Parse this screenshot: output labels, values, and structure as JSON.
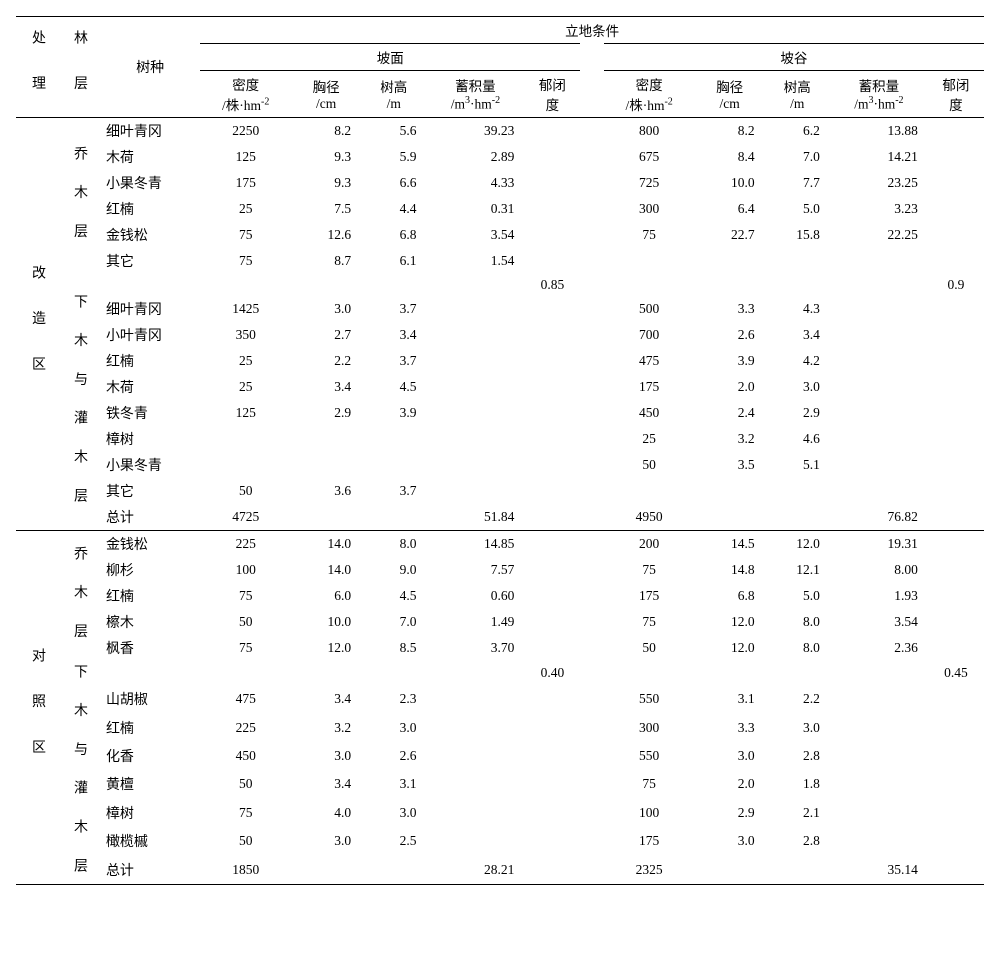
{
  "headers": {
    "treatment": "处\n理",
    "layer": "林\n层",
    "species": "树种",
    "site_cond": "立地条件",
    "slope": "坡面",
    "valley": "坡谷",
    "density": "密度",
    "density_unit_a": "/株·hm",
    "density_unit_exp": "-2",
    "dbh": "胸径",
    "dbh_unit": "/cm",
    "height": "树高",
    "height_unit": "/m",
    "volume": "蓄积量",
    "volume_unit_a": "/m",
    "volume_unit_exp1": "3",
    "volume_unit_b": "·hm",
    "volume_unit_exp2": "-2",
    "canopy_a": "郁闭",
    "canopy_b": "度"
  },
  "treatments": {
    "gz": "改\n造\n区",
    "dz": "对\n照\n区"
  },
  "layers": {
    "upper": "乔\n木\n层",
    "lower": "下\n木\n与\n灌\n木\n层"
  },
  "gz_upper": [
    {
      "sp": "细叶青冈",
      "d1": "2250",
      "dbh1": "8.2",
      "h1": "5.6",
      "v1": "39.23",
      "d2": "800",
      "dbh2": "8.2",
      "h2": "6.2",
      "v2": "13.88"
    },
    {
      "sp": "木荷",
      "d1": "125",
      "dbh1": "9.3",
      "h1": "5.9",
      "v1": "2.89",
      "d2": "675",
      "dbh2": "8.4",
      "h2": "7.0",
      "v2": "14.21"
    },
    {
      "sp": "小果冬青",
      "d1": "175",
      "dbh1": "9.3",
      "h1": "6.6",
      "v1": "4.33",
      "d2": "725",
      "dbh2": "10.0",
      "h2": "7.7",
      "v2": "23.25"
    },
    {
      "sp": "红楠",
      "d1": "25",
      "dbh1": "7.5",
      "h1": "4.4",
      "v1": "0.31",
      "d2": "300",
      "dbh2": "6.4",
      "h2": "5.0",
      "v2": "3.23"
    },
    {
      "sp": "金钱松",
      "d1": "75",
      "dbh1": "12.6",
      "h1": "6.8",
      "v1": "3.54",
      "d2": "75",
      "dbh2": "22.7",
      "h2": "15.8",
      "v2": "22.25"
    },
    {
      "sp": "其它",
      "d1": "75",
      "dbh1": "8.7",
      "h1": "6.1",
      "v1": "1.54",
      "d2": "",
      "dbh2": "",
      "h2": "",
      "v2": ""
    }
  ],
  "gz_canopy": {
    "s": "0.85",
    "v": "0.9"
  },
  "gz_lower": [
    {
      "sp": "细叶青冈",
      "d1": "1425",
      "dbh1": "3.0",
      "h1": "3.7",
      "d2": "500",
      "dbh2": "3.3",
      "h2": "4.3"
    },
    {
      "sp": "小叶青冈",
      "d1": "350",
      "dbh1": "2.7",
      "h1": "3.4",
      "d2": "700",
      "dbh2": "2.6",
      "h2": "3.4"
    },
    {
      "sp": "红楠",
      "d1": "25",
      "dbh1": "2.2",
      "h1": "3.7",
      "d2": "475",
      "dbh2": "3.9",
      "h2": "4.2"
    },
    {
      "sp": "木荷",
      "d1": "25",
      "dbh1": "3.4",
      "h1": "4.5",
      "d2": "175",
      "dbh2": "2.0",
      "h2": "3.0"
    },
    {
      "sp": "铁冬青",
      "d1": "125",
      "dbh1": "2.9",
      "h1": "3.9",
      "d2": "450",
      "dbh2": "2.4",
      "h2": "2.9"
    },
    {
      "sp": "樟树",
      "d1": "",
      "dbh1": "",
      "h1": "",
      "d2": "25",
      "dbh2": "3.2",
      "h2": "4.6"
    },
    {
      "sp": "小果冬青",
      "d1": "",
      "dbh1": "",
      "h1": "",
      "d2": "50",
      "dbh2": "3.5",
      "h2": "5.1"
    },
    {
      "sp": "其它",
      "d1": "50",
      "dbh1": "3.6",
      "h1": "3.7",
      "d2": "",
      "dbh2": "",
      "h2": ""
    }
  ],
  "gz_total": {
    "sp": "总计",
    "d1": "4725",
    "v1": "51.84",
    "d2": "4950",
    "v2": "76.82"
  },
  "dz_upper": [
    {
      "sp": "金钱松",
      "d1": "225",
      "dbh1": "14.0",
      "h1": "8.0",
      "v1": "14.85",
      "d2": "200",
      "dbh2": "14.5",
      "h2": "12.0",
      "v2": "19.31"
    },
    {
      "sp": "柳杉",
      "d1": "100",
      "dbh1": "14.0",
      "h1": "9.0",
      "v1": "7.57",
      "d2": "75",
      "dbh2": "14.8",
      "h2": "12.1",
      "v2": "8.00"
    },
    {
      "sp": "红楠",
      "d1": "75",
      "dbh1": "6.0",
      "h1": "4.5",
      "v1": "0.60",
      "d2": "175",
      "dbh2": "6.8",
      "h2": "5.0",
      "v2": "1.93"
    },
    {
      "sp": "檫木",
      "d1": "50",
      "dbh1": "10.0",
      "h1": "7.0",
      "v1": "1.49",
      "d2": "75",
      "dbh2": "12.0",
      "h2": "8.0",
      "v2": "3.54"
    },
    {
      "sp": "枫香",
      "d1": "75",
      "dbh1": "12.0",
      "h1": "8.5",
      "v1": "3.70",
      "d2": "50",
      "dbh2": "12.0",
      "h2": "8.0",
      "v2": "2.36"
    }
  ],
  "dz_canopy": {
    "s": "0.40",
    "v": "0.45"
  },
  "dz_lower": [
    {
      "sp": "山胡椒",
      "d1": "475",
      "dbh1": "3.4",
      "h1": "2.3",
      "d2": "550",
      "dbh2": "3.1",
      "h2": "2.2"
    },
    {
      "sp": "红楠",
      "d1": "225",
      "dbh1": "3.2",
      "h1": "3.0",
      "d2": "300",
      "dbh2": "3.3",
      "h2": "3.0"
    },
    {
      "sp": "化香",
      "d1": "450",
      "dbh1": "3.0",
      "h1": "2.6",
      "d2": "550",
      "dbh2": "3.0",
      "h2": "2.8"
    },
    {
      "sp": "黄檀",
      "d1": "50",
      "dbh1": "3.4",
      "h1": "3.1",
      "d2": "75",
      "dbh2": "2.0",
      "h2": "1.8"
    },
    {
      "sp": "樟树",
      "d1": "75",
      "dbh1": "4.0",
      "h1": "3.0",
      "d2": "100",
      "dbh2": "2.9",
      "h2": "2.1"
    },
    {
      "sp": "橄榄槭",
      "d1": "50",
      "dbh1": "3.0",
      "h1": "2.5",
      "d2": "175",
      "dbh2": "3.0",
      "h2": "2.8"
    }
  ],
  "dz_total": {
    "sp": "总计",
    "d1": "1850",
    "v1": "28.21",
    "d2": "2325",
    "v2": "35.14"
  }
}
